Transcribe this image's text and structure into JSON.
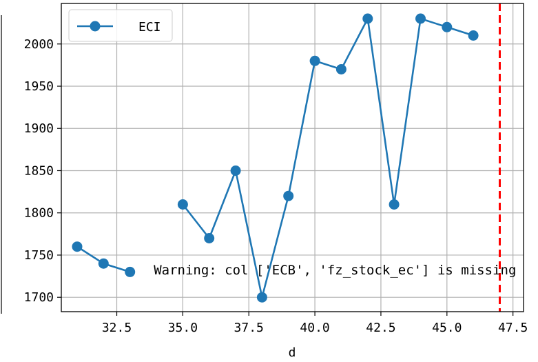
{
  "chart_data": {
    "type": "line",
    "xlabel": "d",
    "ylabel": "",
    "xlim": [
      30.4,
      47.9
    ],
    "ylim": [
      1683,
      2048
    ],
    "xticks": [
      32.5,
      35.0,
      37.5,
      40.0,
      42.5,
      45.0,
      47.5
    ],
    "xtick_labels": [
      "32.5",
      "35.0",
      "37.5",
      "40.0",
      "42.5",
      "45.0",
      "47.5"
    ],
    "yticks": [
      1700,
      1750,
      1800,
      1850,
      1900,
      1950,
      2000
    ],
    "ytick_labels": [
      "1700",
      "1750",
      "1800",
      "1850",
      "1900",
      "1950",
      "2000"
    ],
    "grid": true,
    "legend_position": "top-left",
    "series": [
      {
        "name": "ECI",
        "color": "#1f77b4",
        "marker": "circle",
        "segments": [
          [
            [
              31,
              1760
            ],
            [
              32,
              1740
            ],
            [
              33,
              1730
            ]
          ],
          [
            [
              35,
              1810
            ],
            [
              36,
              1770
            ],
            [
              37,
              1850
            ],
            [
              38,
              1700
            ],
            [
              39,
              1820
            ],
            [
              40,
              1980
            ],
            [
              41,
              1970
            ],
            [
              42,
              2030
            ],
            [
              43,
              1810
            ],
            [
              44,
              2030
            ],
            [
              45,
              2020
            ],
            [
              46,
              2010
            ]
          ]
        ]
      }
    ],
    "vline": {
      "x": 47,
      "color": "#ff0000",
      "style": "dashed"
    },
    "annotation": {
      "text": "Warning: col ['ECB', 'fz_stock_ec'] is missing",
      "x": 33.9,
      "y": 1727
    }
  }
}
